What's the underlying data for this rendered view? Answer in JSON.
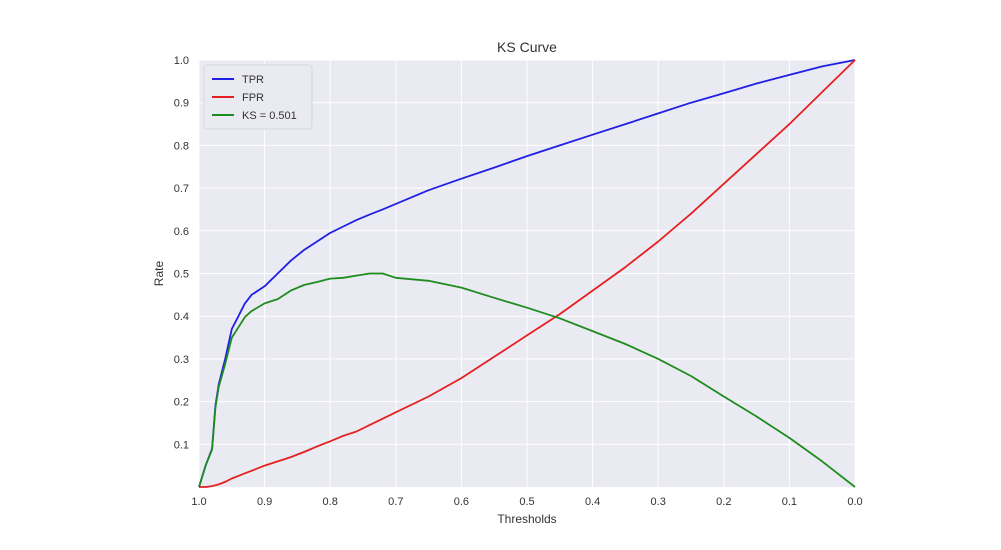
{
  "chart_data": {
    "type": "line",
    "title": "KS Curve",
    "xlabel": "Thresholds",
    "ylabel": "Rate",
    "xlim": [
      1.0,
      0.0
    ],
    "ylim": [
      0.0,
      1.0
    ],
    "x_reversed": true,
    "grid": true,
    "legend_position": "top-left",
    "x_ticks": [
      "1.0",
      "0.9",
      "0.8",
      "0.7",
      "0.6",
      "0.5",
      "0.4",
      "0.3",
      "0.2",
      "0.1",
      "0.0"
    ],
    "y_ticks": [
      "0.1",
      "0.2",
      "0.3",
      "0.4",
      "0.5",
      "0.6",
      "0.7",
      "0.8",
      "0.9",
      "1.0"
    ],
    "x": [
      1.0,
      0.99,
      0.98,
      0.975,
      0.97,
      0.96,
      0.95,
      0.94,
      0.93,
      0.92,
      0.9,
      0.88,
      0.86,
      0.84,
      0.82,
      0.8,
      0.78,
      0.76,
      0.74,
      0.72,
      0.7,
      0.65,
      0.6,
      0.55,
      0.5,
      0.45,
      0.4,
      0.35,
      0.3,
      0.25,
      0.2,
      0.15,
      0.1,
      0.05,
      0.0
    ],
    "series": [
      {
        "name": "TPR",
        "color": "#1f1fe6",
        "values": [
          0.0,
          0.05,
          0.09,
          0.19,
          0.24,
          0.3,
          0.37,
          0.4,
          0.43,
          0.45,
          0.47,
          0.5,
          0.53,
          0.555,
          0.575,
          0.595,
          0.61,
          0.625,
          0.638,
          0.65,
          0.663,
          0.695,
          0.722,
          0.748,
          0.775,
          0.8,
          0.825,
          0.85,
          0.875,
          0.9,
          0.922,
          0.945,
          0.965,
          0.985,
          1.0
        ]
      },
      {
        "name": "FPR",
        "color": "#e62020",
        "values": [
          0.0,
          0.0,
          0.002,
          0.004,
          0.006,
          0.012,
          0.02,
          0.026,
          0.032,
          0.038,
          0.05,
          0.06,
          0.07,
          0.082,
          0.095,
          0.107,
          0.12,
          0.13,
          0.145,
          0.16,
          0.175,
          0.212,
          0.255,
          0.305,
          0.355,
          0.405,
          0.46,
          0.515,
          0.575,
          0.64,
          0.71,
          0.78,
          0.85,
          0.925,
          1.0
        ]
      },
      {
        "name": "KS = 0.501",
        "color": "#1f8c1f",
        "values": [
          0.0,
          0.05,
          0.088,
          0.186,
          0.234,
          0.288,
          0.35,
          0.374,
          0.398,
          0.412,
          0.43,
          0.44,
          0.46,
          0.473,
          0.48,
          0.488,
          0.49,
          0.495,
          0.5,
          0.5,
          0.49,
          0.483,
          0.467,
          0.443,
          0.42,
          0.395,
          0.365,
          0.335,
          0.3,
          0.26,
          0.212,
          0.165,
          0.115,
          0.06,
          0.0
        ]
      }
    ]
  }
}
